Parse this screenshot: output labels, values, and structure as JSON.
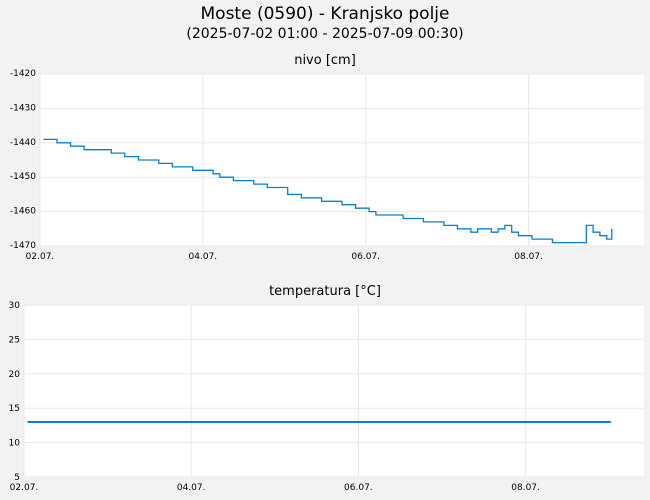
{
  "header": {
    "title": "Moste (0590) - Kranjsko polje",
    "subtitle": "(2025-07-02 01:00 - 2025-07-09 00:30)"
  },
  "colors": {
    "line": "#0a7fd1",
    "grid": "#e8e8e8",
    "plot_bg": "#ffffff",
    "page_bg": "#f2f2f2"
  },
  "chart_data": [
    {
      "type": "line",
      "title": "nivo [cm]",
      "xlim": [
        "2025-07-02 00:00",
        "2025-07-09 10:00"
      ],
      "ylim": [
        -1470,
        -1420
      ],
      "yticks": [
        -1420,
        -1430,
        -1440,
        -1450,
        -1460,
        -1470
      ],
      "xticks": [
        {
          "date": "2025-07-02 00:00",
          "label": "02.07."
        },
        {
          "date": "2025-07-04 00:00",
          "label": "04.07."
        },
        {
          "date": "2025-07-06 00:00",
          "label": "06.07."
        },
        {
          "date": "2025-07-08 00:00",
          "label": "08.07."
        }
      ],
      "grid": true,
      "series": [
        {
          "x": [
            "2025-07-02 01:00",
            "2025-07-02 03:00",
            "2025-07-02 05:00",
            "2025-07-02 07:00",
            "2025-07-02 09:00",
            "2025-07-02 11:00",
            "2025-07-02 13:00",
            "2025-07-02 15:00",
            "2025-07-02 17:00",
            "2025-07-02 19:00",
            "2025-07-02 21:00",
            "2025-07-02 23:00",
            "2025-07-03 01:00",
            "2025-07-03 03:00",
            "2025-07-03 05:00",
            "2025-07-03 07:00",
            "2025-07-03 09:00",
            "2025-07-03 11:00",
            "2025-07-03 13:00",
            "2025-07-03 15:00",
            "2025-07-03 17:00",
            "2025-07-03 19:00",
            "2025-07-03 21:00",
            "2025-07-03 23:00",
            "2025-07-04 01:00",
            "2025-07-04 03:00",
            "2025-07-04 05:00",
            "2025-07-04 07:00",
            "2025-07-04 09:00",
            "2025-07-04 11:00",
            "2025-07-04 13:00",
            "2025-07-04 15:00",
            "2025-07-04 17:00",
            "2025-07-04 19:00",
            "2025-07-04 21:00",
            "2025-07-04 23:00",
            "2025-07-05 01:00",
            "2025-07-05 03:00",
            "2025-07-05 05:00",
            "2025-07-05 07:00",
            "2025-07-05 09:00",
            "2025-07-05 11:00",
            "2025-07-05 13:00",
            "2025-07-05 15:00",
            "2025-07-05 17:00",
            "2025-07-05 19:00",
            "2025-07-05 21:00",
            "2025-07-05 23:00",
            "2025-07-06 01:00",
            "2025-07-06 03:00",
            "2025-07-06 05:00",
            "2025-07-06 07:00",
            "2025-07-06 09:00",
            "2025-07-06 11:00",
            "2025-07-06 13:00",
            "2025-07-06 15:00",
            "2025-07-06 17:00",
            "2025-07-06 19:00",
            "2025-07-06 21:00",
            "2025-07-06 23:00",
            "2025-07-07 01:00",
            "2025-07-07 03:00",
            "2025-07-07 05:00",
            "2025-07-07 07:00",
            "2025-07-07 09:00",
            "2025-07-07 11:00",
            "2025-07-07 13:00",
            "2025-07-07 15:00",
            "2025-07-07 17:00",
            "2025-07-07 19:00",
            "2025-07-07 21:00",
            "2025-07-07 23:00",
            "2025-07-08 01:00",
            "2025-07-08 03:00",
            "2025-07-08 05:00",
            "2025-07-08 07:00",
            "2025-07-08 09:00",
            "2025-07-08 11:00",
            "2025-07-08 13:00",
            "2025-07-08 15:00",
            "2025-07-08 17:00",
            "2025-07-08 19:00",
            "2025-07-08 21:00",
            "2025-07-08 23:00",
            "2025-07-09 00:30"
          ],
          "y": [
            -1439,
            -1439,
            -1440,
            -1440,
            -1441,
            -1441,
            -1442,
            -1442,
            -1442,
            -1442,
            -1443,
            -1443,
            -1444,
            -1444,
            -1445,
            -1445,
            -1445,
            -1446,
            -1446,
            -1447,
            -1447,
            -1447,
            -1448,
            -1448,
            -1448,
            -1449,
            -1450,
            -1450,
            -1451,
            -1451,
            -1451,
            -1452,
            -1452,
            -1453,
            -1453,
            -1453,
            -1455,
            -1455,
            -1456,
            -1456,
            -1456,
            -1457,
            -1457,
            -1457,
            -1458,
            -1458,
            -1459,
            -1459,
            -1460,
            -1461,
            -1461,
            -1461,
            -1461,
            -1462,
            -1462,
            -1462,
            -1463,
            -1463,
            -1463,
            -1464,
            -1464,
            -1465,
            -1465,
            -1466,
            -1465,
            -1465,
            -1466,
            -1465,
            -1464,
            -1466,
            -1467,
            -1467,
            -1468,
            -1468,
            -1468,
            -1469,
            -1469,
            -1469,
            -1469,
            -1469,
            -1464,
            -1466,
            -1467,
            -1468,
            -1465
          ]
        }
      ]
    },
    {
      "type": "line",
      "title": "temperatura [°C]",
      "xlim": [
        "2025-07-02 00:00",
        "2025-07-09 10:00"
      ],
      "ylim": [
        5,
        30
      ],
      "yticks": [
        30,
        25,
        20,
        15,
        10,
        5
      ],
      "xticks": [
        {
          "date": "2025-07-02 00:00",
          "label": "02.07."
        },
        {
          "date": "2025-07-04 00:00",
          "label": "04.07."
        },
        {
          "date": "2025-07-06 00:00",
          "label": "06.07."
        },
        {
          "date": "2025-07-08 00:00",
          "label": "08.07."
        }
      ],
      "grid": true,
      "series": [
        {
          "x": [
            "2025-07-02 01:00",
            "2025-07-09 00:30"
          ],
          "y": [
            13,
            13
          ]
        }
      ]
    }
  ]
}
